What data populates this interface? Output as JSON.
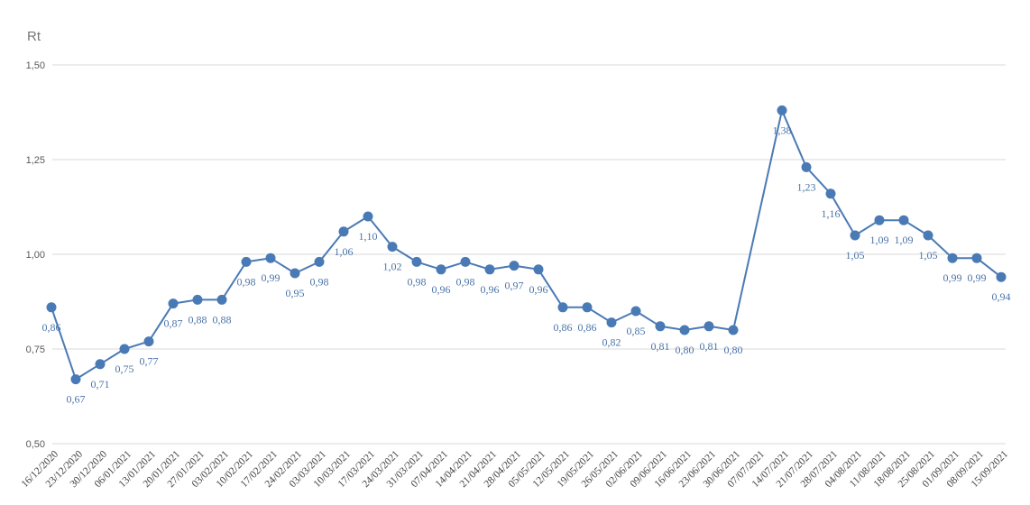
{
  "chart_data": {
    "type": "line",
    "y_axis_label": "Rt",
    "categories": [
      "16/12/2020",
      "23/12/2020",
      "30/12/2020",
      "06/01/2021",
      "13/01/2021",
      "20/01/2021",
      "27/01/2021",
      "03/02/2021",
      "10/02/2021",
      "17/02/2021",
      "24/02/2021",
      "03/03/2021",
      "10/03/2021",
      "17/03/2021",
      "24/03/2021",
      "31/03/2021",
      "07/04/2021",
      "14/04/2021",
      "21/04/2021",
      "28/04/2021",
      "05/05/2021",
      "12/05/2021",
      "19/05/2021",
      "26/05/2021",
      "02/06/2021",
      "09/06/2021",
      "16/06/2021",
      "23/06/2021",
      "30/06/2021",
      "07/07/2021",
      "14/07/2021",
      "21/07/2021",
      "28/07/2021",
      "04/08/2021",
      "11/08/2021",
      "18/08/2021",
      "25/08/2021",
      "01/09/2021",
      "08/09/2021",
      "15/09/2021"
    ],
    "values": [
      0.86,
      0.67,
      0.71,
      0.75,
      0.77,
      0.87,
      0.88,
      0.88,
      0.98,
      0.99,
      0.95,
      0.98,
      1.06,
      1.1,
      1.02,
      0.98,
      0.96,
      0.98,
      0.96,
      0.97,
      0.96,
      0.86,
      0.86,
      0.82,
      0.85,
      0.81,
      0.8,
      0.81,
      0.8,
      null,
      1.38,
      1.23,
      1.16,
      1.05,
      1.09,
      1.09,
      1.05,
      0.99,
      0.99,
      0.94
    ],
    "value_labels": [
      "0,86",
      "0,67",
      "0,71",
      "0,75",
      "0,77",
      "0,87",
      "0,88",
      "0,88",
      "0,98",
      "0,99",
      "0,95",
      "0,98",
      "1,06",
      "1,10",
      "1,02",
      "0,98",
      "0,96",
      "0,98",
      "0,96",
      "0,97",
      "0,96",
      "0,86",
      "0,86",
      "0,82",
      "0,85",
      "0,81",
      "0,80",
      "0,81",
      "0,80",
      null,
      "1,38",
      "1,23",
      "1,16",
      "1,05",
      "1,09",
      "1,09",
      "1,05",
      "0,99",
      "0,99",
      "0,94"
    ],
    "color": "#4a7ab5",
    "connect_gaps": true,
    "ylim": [
      0.5,
      1.5
    ],
    "yticks": [
      {
        "value": 0.5,
        "label": "0,50"
      },
      {
        "value": 0.75,
        "label": "0,75"
      },
      {
        "value": 1.0,
        "label": "1,00"
      },
      {
        "value": 1.25,
        "label": "1,25"
      },
      {
        "value": 1.5,
        "label": "1,50"
      }
    ],
    "grid": true
  }
}
